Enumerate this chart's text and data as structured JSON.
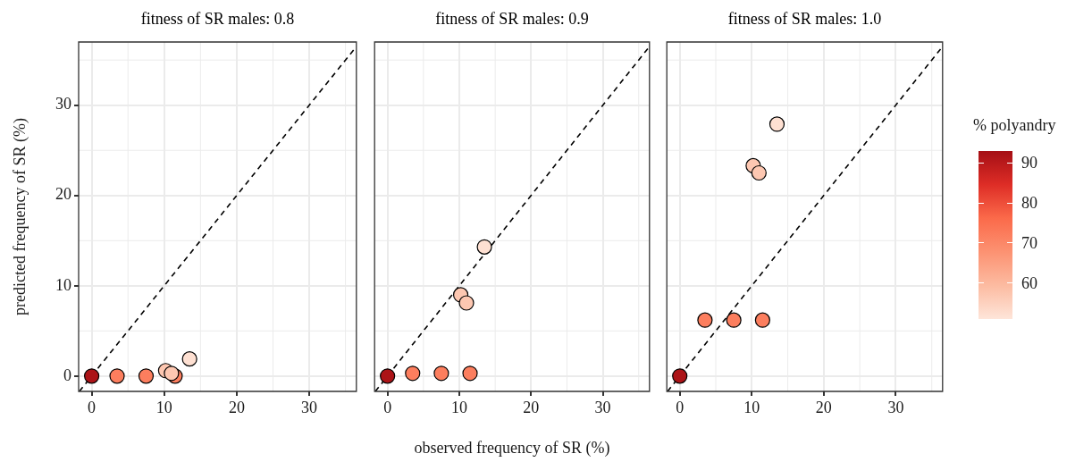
{
  "chart_data": [
    {
      "type": "scatter",
      "title": "fitness of SR males: 0.8",
      "ylabel": "predicted frequency of SR (%)",
      "xlim": [
        -1.8,
        36.5
      ],
      "ylim": [
        -1.7,
        37
      ],
      "xticks": [
        0,
        10,
        20,
        30
      ],
      "yticks": [
        0,
        10,
        20,
        30
      ],
      "grid": true,
      "series": [
        {
          "type": "line",
          "x": [
            -1.7,
            36.5
          ],
          "values": [
            -1.7,
            36.5
          ],
          "color": "#000000",
          "line_style": "dashed",
          "marker": "none"
        },
        {
          "type": "scatter",
          "x": [
            0,
            3.5,
            7.5,
            11.5,
            10.2,
            11,
            13.5
          ],
          "values": [
            0,
            0,
            0,
            0,
            0.6,
            0.3,
            1.9
          ],
          "colors": [
            "#ac1317",
            "#fc7e5e",
            "#fc7e5e",
            "#fc7e5e",
            "#fdc7b1",
            "#fdc7b1",
            "#fee0d2"
          ],
          "marker": "circle"
        }
      ]
    },
    {
      "type": "scatter",
      "title": "fitness of SR males: 0.9",
      "xlabel": "observed frequency of SR (%)",
      "xlim": [
        -1.8,
        36.5
      ],
      "ylim": [
        -1.7,
        37
      ],
      "xticks": [
        0,
        10,
        20,
        30
      ],
      "yticks": [
        0,
        10,
        20,
        30
      ],
      "grid": true,
      "tick_labels": "x",
      "series": [
        {
          "type": "line",
          "x": [
            -1.7,
            36.5
          ],
          "values": [
            -1.7,
            36.5
          ],
          "color": "#000000",
          "line_style": "dashed",
          "marker": "none"
        },
        {
          "type": "scatter",
          "x": [
            0,
            3.5,
            7.5,
            11.5,
            10.2,
            11,
            13.5
          ],
          "values": [
            0,
            0.3,
            0.3,
            0.3,
            9.0,
            8.1,
            14.3
          ],
          "colors": [
            "#ac1317",
            "#fc7e5e",
            "#fc7e5e",
            "#fc7e5e",
            "#fdc7b1",
            "#fdc7b1",
            "#fee0d2"
          ],
          "marker": "circle"
        }
      ]
    },
    {
      "type": "scatter",
      "title": "fitness of SR males: 1.0",
      "xlim": [
        -1.8,
        36.5
      ],
      "ylim": [
        -1.7,
        37
      ],
      "xticks": [
        0,
        10,
        20,
        30
      ],
      "yticks": [
        0,
        10,
        20,
        30
      ],
      "grid": true,
      "tick_labels": "x",
      "clim": [
        51,
        93
      ],
      "cticks": [
        60,
        70,
        80,
        90
      ],
      "clabel": "% polyandry",
      "series": [
        {
          "type": "line",
          "x": [
            -1.7,
            36.5
          ],
          "values": [
            -1.7,
            36.5
          ],
          "color": "#000000",
          "line_style": "dashed",
          "marker": "none"
        },
        {
          "type": "scatter",
          "x": [
            0,
            3.5,
            7.5,
            11.5,
            10.2,
            11,
            13.5
          ],
          "values": [
            0,
            6.2,
            6.2,
            6.2,
            23.3,
            22.5,
            27.9
          ],
          "colors": [
            "#ac1317",
            "#fc7e5e",
            "#fc7e5e",
            "#fc7e5e",
            "#fdc7b1",
            "#fdc7b1",
            "#fee0d2"
          ],
          "marker": "circle"
        }
      ]
    }
  ]
}
